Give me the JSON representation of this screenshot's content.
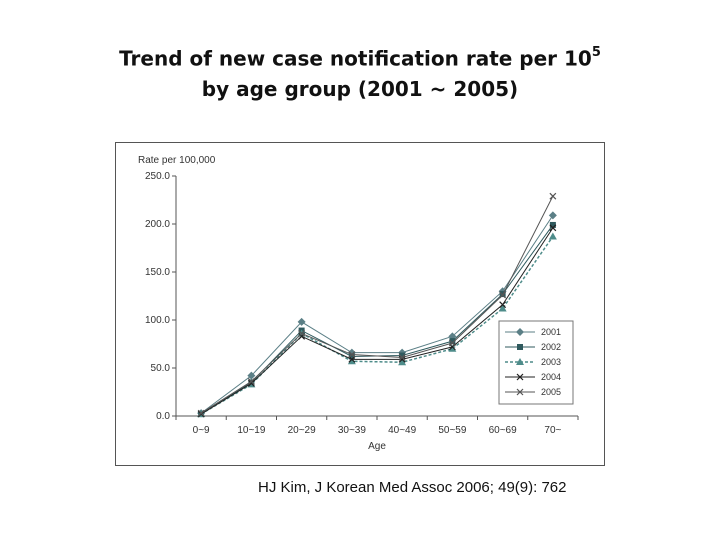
{
  "slide": {
    "title_line1": "Trend of new case notification rate per 10",
    "title_sup": "5",
    "title_line2": "by age group (2001 ~ 2005)",
    "citation": "HJ Kim, J Korean Med Assoc 2006; 49(9): 762"
  },
  "chart_data": {
    "type": "line",
    "title": "",
    "ylabel": "Rate per 100,000",
    "xlabel": "Age",
    "ylim": [
      0,
      250
    ],
    "yticks": [
      "0.0",
      "50.0",
      "100.0",
      "150.0",
      "200.0",
      "250.0"
    ],
    "categories": [
      "0~9",
      "10~19",
      "20~29",
      "30~39",
      "40~49",
      "50~59",
      "60~69",
      "70~"
    ],
    "legend_position": "right",
    "series": [
      {
        "name": "2001",
        "marker": "diamond",
        "dash": "solid",
        "color": "#5b7f86",
        "values": [
          3,
          42,
          98,
          66,
          66,
          83,
          130,
          209
        ]
      },
      {
        "name": "2002",
        "marker": "square",
        "dash": "solid",
        "color": "#2f5a5e",
        "values": [
          2,
          35,
          89,
          62,
          63,
          78,
          127,
          199
        ]
      },
      {
        "name": "2003",
        "marker": "triangle",
        "dash": "dashed",
        "color": "#4e8c8a",
        "values": [
          2,
          33,
          86,
          57,
          56,
          70,
          112,
          187
        ]
      },
      {
        "name": "2004",
        "marker": "x",
        "dash": "solid",
        "color": "#222222",
        "values": [
          2,
          34,
          83,
          59,
          59,
          72,
          116,
          196
        ]
      },
      {
        "name": "2005",
        "marker": "x",
        "dash": "solid",
        "color": "#555555",
        "values": [
          3,
          36,
          86,
          64,
          61,
          76,
          126,
          229
        ]
      }
    ]
  }
}
